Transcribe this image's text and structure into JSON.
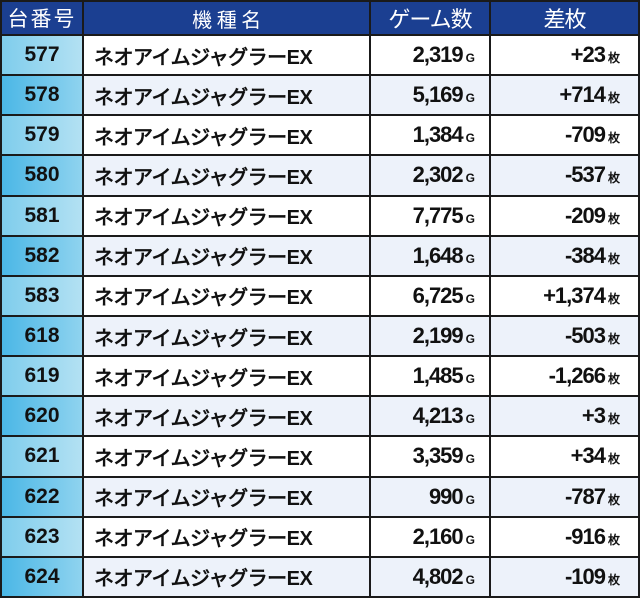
{
  "header": {
    "machine_no": "台番号",
    "model": "機 種 名",
    "games": "ゲーム数",
    "diff": "差枚"
  },
  "units": {
    "games": "G",
    "diff": "枚"
  },
  "colors": {
    "header_bg": "#1b3f91",
    "first_col_bg": "#5ec1ea",
    "alt_row_bg": "#edf2fa"
  },
  "rows": [
    {
      "no": "577",
      "model": "ネオアイムジャグラーEX",
      "games": "2,319",
      "diff": "+23"
    },
    {
      "no": "578",
      "model": "ネオアイムジャグラーEX",
      "games": "5,169",
      "diff": "+714"
    },
    {
      "no": "579",
      "model": "ネオアイムジャグラーEX",
      "games": "1,384",
      "diff": "-709"
    },
    {
      "no": "580",
      "model": "ネオアイムジャグラーEX",
      "games": "2,302",
      "diff": "-537"
    },
    {
      "no": "581",
      "model": "ネオアイムジャグラーEX",
      "games": "7,775",
      "diff": "-209"
    },
    {
      "no": "582",
      "model": "ネオアイムジャグラーEX",
      "games": "1,648",
      "diff": "-384"
    },
    {
      "no": "583",
      "model": "ネオアイムジャグラーEX",
      "games": "6,725",
      "diff": "+1,374"
    },
    {
      "no": "618",
      "model": "ネオアイムジャグラーEX",
      "games": "2,199",
      "diff": "-503"
    },
    {
      "no": "619",
      "model": "ネオアイムジャグラーEX",
      "games": "1,485",
      "diff": "-1,266"
    },
    {
      "no": "620",
      "model": "ネオアイムジャグラーEX",
      "games": "4,213",
      "diff": "+3"
    },
    {
      "no": "621",
      "model": "ネオアイムジャグラーEX",
      "games": "3,359",
      "diff": "+34"
    },
    {
      "no": "622",
      "model": "ネオアイムジャグラーEX",
      "games": "990",
      "diff": "-787"
    },
    {
      "no": "623",
      "model": "ネオアイムジャグラーEX",
      "games": "2,160",
      "diff": "-916"
    },
    {
      "no": "624",
      "model": "ネオアイムジャグラーEX",
      "games": "4,802",
      "diff": "-109"
    }
  ]
}
